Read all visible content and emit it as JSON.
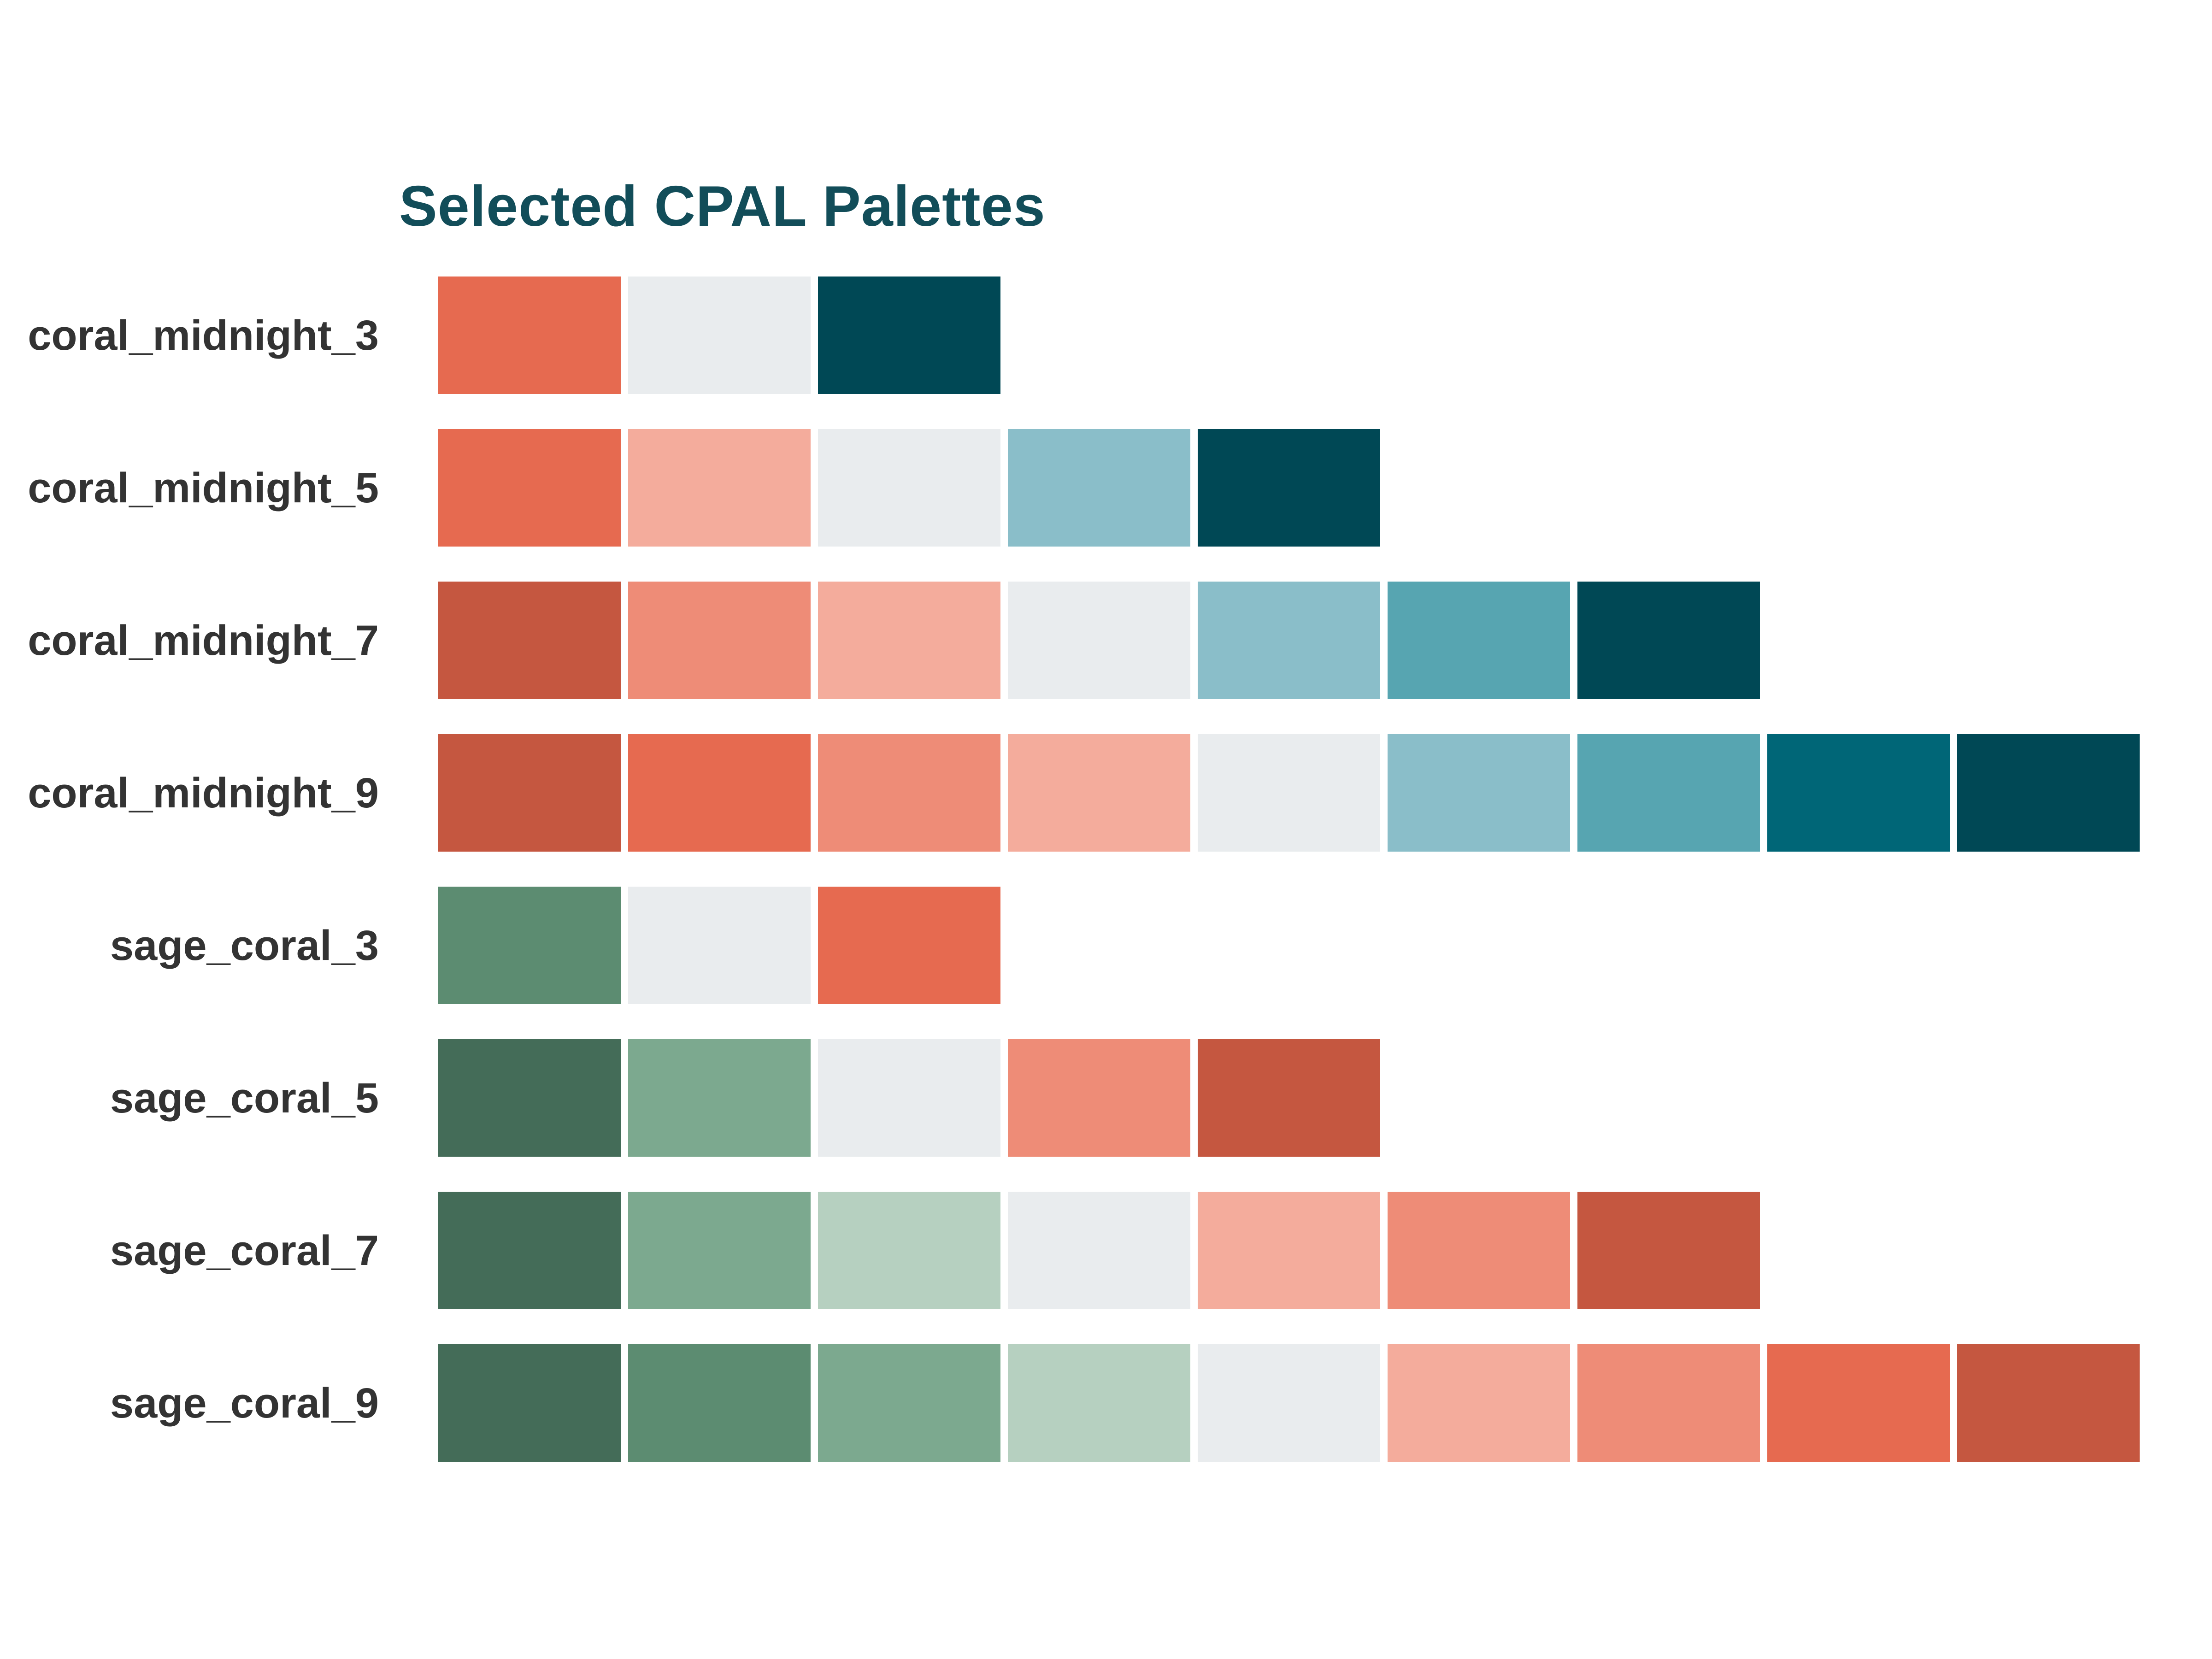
{
  "title": "Selected CPAL Palettes",
  "colors": {
    "background": "#FFFFFF",
    "title_text": "#124D59",
    "label_text": "#333333"
  },
  "chart_data": {
    "type": "heatmap",
    "title": "Selected CPAL Palettes",
    "xlabel": "",
    "ylabel": "",
    "grid": false,
    "legend": false,
    "categories": [
      "coral_midnight_3",
      "coral_midnight_5",
      "coral_midnight_7",
      "coral_midnight_9",
      "sage_coral_3",
      "sage_coral_5",
      "sage_coral_7",
      "sage_coral_9"
    ],
    "series": [
      {
        "name": "coral_midnight_3",
        "values": [
          "#E66A50",
          "#E9ECEE",
          "#004855"
        ]
      },
      {
        "name": "coral_midnight_5",
        "values": [
          "#E66A50",
          "#F4AC9C",
          "#E9ECEE",
          "#8ABEC9",
          "#004855"
        ]
      },
      {
        "name": "coral_midnight_7",
        "values": [
          "#C55740",
          "#EE8C77",
          "#F4AC9C",
          "#E9ECEE",
          "#8ABEC9",
          "#57A5B1",
          "#004855"
        ]
      },
      {
        "name": "coral_midnight_9",
        "values": [
          "#C55740",
          "#E66A50",
          "#EE8C77",
          "#F4AC9C",
          "#E9ECEE",
          "#8ABEC9",
          "#57A5B1",
          "#006677",
          "#004855"
        ]
      },
      {
        "name": "sage_coral_3",
        "values": [
          "#5C8C71",
          "#E9ECEE",
          "#E66A50"
        ]
      },
      {
        "name": "sage_coral_5",
        "values": [
          "#446C58",
          "#7CA98F",
          "#E9ECEE",
          "#EE8C77",
          "#C55740"
        ]
      },
      {
        "name": "sage_coral_7",
        "values": [
          "#446C58",
          "#7CA98F",
          "#B6D0C0",
          "#E9ECEE",
          "#F4AC9C",
          "#EE8C77",
          "#C55740"
        ]
      },
      {
        "name": "sage_coral_9",
        "values": [
          "#446C58",
          "#5C8C71",
          "#7CA98F",
          "#B6D0C0",
          "#E9ECEE",
          "#F4AC9C",
          "#EE8C77",
          "#E66A50",
          "#C55740"
        ]
      }
    ]
  }
}
